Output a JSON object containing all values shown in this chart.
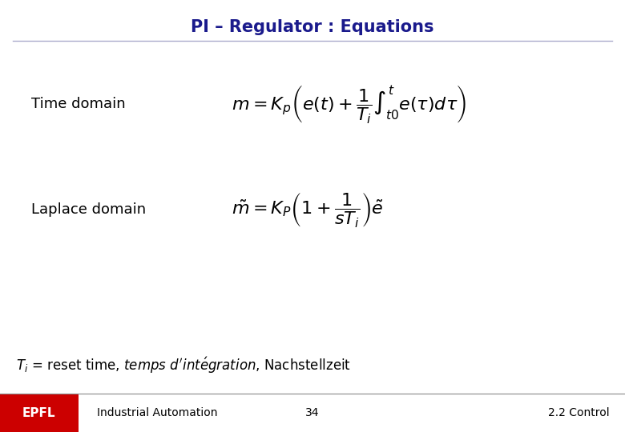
{
  "title": "PI – Regulator : Equations",
  "title_color": "#1a1a8c",
  "title_fontsize": 15,
  "title_bold": true,
  "label_time": "Time domain",
  "label_laplace": "Laplace domain",
  "formula_time": "$m = K_p\\left(e(t)+\\dfrac{1}{T_i}\\int_{t0}^{t}e(\\tau)d\\tau\\right)$",
  "formula_laplace": "$\\tilde{m} =K_P\\left(1+\\dfrac{1}{sT_i}\\right)\\tilde{e}$",
  "footer_left": "Industrial Automation",
  "footer_center": "34",
  "footer_right": "2.2 Control",
  "footer_bg_color": "#cc0000",
  "footer_text_color": "#000000",
  "bg_color": "#ffffff",
  "label_fontsize": 13,
  "formula_fontsize": 16,
  "footnote_fontsize": 12,
  "footer_fontsize": 10,
  "separator_color": "#aaaacc"
}
